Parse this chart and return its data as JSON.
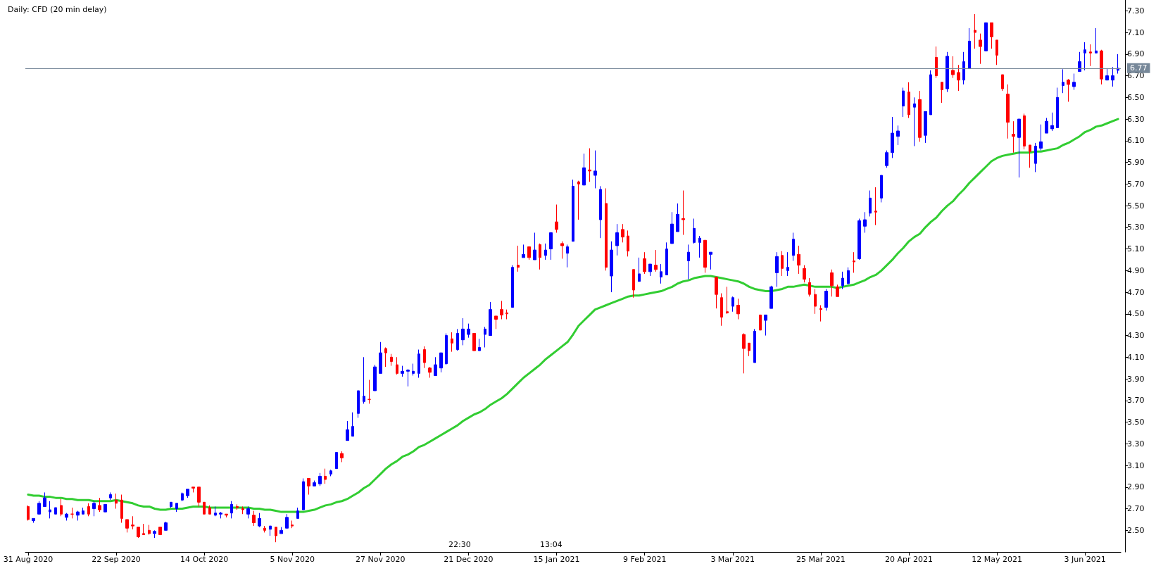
{
  "chart_data": {
    "type": "candlestick",
    "title": "Daily: CFD (20 min delay)",
    "categories": [
      "31 Aug 2020",
      null,
      null,
      null,
      null,
      null,
      null,
      null,
      null,
      null,
      null,
      null,
      null,
      null,
      null,
      null,
      "22 Sep 2020",
      null,
      null,
      null,
      null,
      null,
      null,
      null,
      null,
      null,
      null,
      null,
      null,
      null,
      null,
      null,
      "14 Oct 2020",
      null,
      null,
      null,
      null,
      null,
      null,
      null,
      null,
      null,
      null,
      null,
      null,
      null,
      null,
      null,
      "5 Nov 2020",
      null,
      null,
      null,
      null,
      null,
      null,
      null,
      null,
      null,
      null,
      null,
      null,
      null,
      null,
      null,
      "27 Nov 2020",
      null,
      null,
      null,
      null,
      null,
      null,
      null,
      null,
      null,
      null,
      null,
      null,
      null,
      null,
      null,
      "21 Dec 2020",
      null,
      null,
      null,
      null,
      null,
      null,
      null,
      null,
      null,
      null,
      null,
      null,
      null,
      null,
      null,
      "15 Jan 2021",
      null,
      null,
      null,
      null,
      null,
      null,
      null,
      null,
      null,
      null,
      null,
      null,
      null,
      null,
      null,
      "9 Feb 2021",
      null,
      null,
      null,
      null,
      null,
      null,
      null,
      null,
      null,
      null,
      null,
      null,
      null,
      null,
      null,
      "3 Mar 2021",
      null,
      null,
      null,
      null,
      null,
      null,
      null,
      null,
      null,
      null,
      null,
      null,
      null,
      null,
      null,
      "25 Mar 2021",
      null,
      null,
      null,
      null,
      null,
      null,
      null,
      null,
      null,
      null,
      null,
      null,
      null,
      null,
      null,
      "20 Apr 2021",
      null,
      null,
      null,
      null,
      null,
      null,
      null,
      null,
      null,
      null,
      null,
      null,
      null,
      null,
      null,
      "12 May 2021",
      null,
      null,
      null,
      null,
      null,
      null,
      null,
      null,
      null,
      null,
      null,
      null,
      null,
      null,
      null,
      "3 Jun 2021",
      null,
      null,
      null,
      null,
      null,
      null
    ],
    "series": [
      {
        "ohlc": [
          [
            2.72,
            2.73,
            2.59,
            2.6
          ],
          [
            2.59,
            2.61,
            2.57,
            2.61
          ],
          [
            2.65,
            2.77,
            2.65,
            2.75
          ],
          [
            2.72,
            2.85,
            2.72,
            2.8
          ],
          [
            2.67,
            2.77,
            2.61,
            2.69
          ],
          [
            2.65,
            2.71,
            2.65,
            2.71
          ],
          [
            2.73,
            2.79,
            2.63,
            2.65
          ],
          [
            2.62,
            2.66,
            2.59,
            2.65
          ],
          [
            2.65,
            2.71,
            2.61,
            2.65
          ],
          [
            2.64,
            2.68,
            2.59,
            2.67
          ],
          [
            2.65,
            2.71,
            2.65,
            2.68
          ],
          [
            2.72,
            2.75,
            2.63,
            2.65
          ],
          [
            2.7,
            2.77,
            2.63,
            2.75
          ],
          [
            2.73,
            2.8,
            2.67,
            2.69
          ],
          [
            2.67,
            2.74,
            2.67,
            2.74
          ],
          [
            2.8,
            2.85,
            2.78,
            2.83
          ],
          [
            2.78,
            2.84,
            2.7,
            2.75
          ],
          [
            2.78,
            2.83,
            2.57,
            2.61
          ],
          [
            2.6,
            2.6,
            2.48,
            2.52
          ],
          [
            2.55,
            2.63,
            2.51,
            2.54
          ],
          [
            2.53,
            2.53,
            2.43,
            2.44
          ],
          [
            2.47,
            2.56,
            2.46,
            2.46
          ],
          [
            2.5,
            2.55,
            2.46,
            2.47
          ],
          [
            2.47,
            2.5,
            2.43,
            2.49
          ],
          [
            2.53,
            2.53,
            2.46,
            2.46
          ],
          [
            2.5,
            2.58,
            2.5,
            2.57
          ],
          [
            2.72,
            2.76,
            2.71,
            2.76
          ],
          [
            2.7,
            2.75,
            2.67,
            2.75
          ],
          [
            2.78,
            2.85,
            2.77,
            2.84
          ],
          [
            2.82,
            2.88,
            2.8,
            2.88
          ],
          [
            2.9,
            2.9,
            2.85,
            2.89
          ],
          [
            2.9,
            2.9,
            2.72,
            2.76
          ],
          [
            2.76,
            2.76,
            2.65,
            2.65
          ],
          [
            2.71,
            2.73,
            2.65,
            2.65
          ],
          [
            2.64,
            2.72,
            2.63,
            2.66
          ],
          [
            2.65,
            2.67,
            2.61,
            2.66
          ],
          [
            2.65,
            2.65,
            2.62,
            2.64
          ],
          [
            2.66,
            2.77,
            2.61,
            2.74
          ],
          [
            2.72,
            2.74,
            2.69,
            2.71
          ],
          [
            2.7,
            2.72,
            2.65,
            2.69
          ],
          [
            2.65,
            2.72,
            2.61,
            2.7
          ],
          [
            2.64,
            2.68,
            2.54,
            2.57
          ],
          [
            2.54,
            2.66,
            2.53,
            2.61
          ],
          [
            2.52,
            2.54,
            2.48,
            2.5
          ],
          [
            2.51,
            2.54,
            2.45,
            2.54
          ],
          [
            2.53,
            2.53,
            2.39,
            2.45
          ],
          [
            2.47,
            2.53,
            2.47,
            2.5
          ],
          [
            2.52,
            2.65,
            2.52,
            2.62
          ],
          [
            2.55,
            2.59,
            2.52,
            2.54
          ],
          [
            2.61,
            2.71,
            2.61,
            2.68
          ],
          [
            2.69,
            2.98,
            2.69,
            2.95
          ],
          [
            2.98,
            2.98,
            2.83,
            2.91
          ],
          [
            2.91,
            2.96,
            2.91,
            2.94
          ],
          [
            2.93,
            3.03,
            2.91,
            3.0
          ],
          [
            3.0,
            3.07,
            2.93,
            2.97
          ],
          [
            3.02,
            3.06,
            3.0,
            3.05
          ],
          [
            3.07,
            3.22,
            3.07,
            3.22
          ],
          [
            3.21,
            3.23,
            3.13,
            3.17
          ],
          [
            3.33,
            3.51,
            3.33,
            3.43
          ],
          [
            3.37,
            3.59,
            3.37,
            3.46
          ],
          [
            3.58,
            3.79,
            3.54,
            3.79
          ],
          [
            3.69,
            4.1,
            3.67,
            3.74
          ],
          [
            3.71,
            3.89,
            3.67,
            3.71
          ],
          [
            3.79,
            4.03,
            3.79,
            4.01
          ],
          [
            3.95,
            4.24,
            3.95,
            4.14
          ],
          [
            4.18,
            4.19,
            4.01,
            4.14
          ],
          [
            4.1,
            4.13,
            4.02,
            4.06
          ],
          [
            4.03,
            4.1,
            3.94,
            3.95
          ],
          [
            3.95,
            4.02,
            3.92,
            3.97
          ],
          [
            3.97,
            3.99,
            3.83,
            3.98
          ],
          [
            3.95,
            4.04,
            3.93,
            3.97
          ],
          [
            3.95,
            4.17,
            3.91,
            4.13
          ],
          [
            4.17,
            4.2,
            4.0,
            4.05
          ],
          [
            4.0,
            4.01,
            3.91,
            3.96
          ],
          [
            3.93,
            4.1,
            3.93,
            4.03
          ],
          [
            4.0,
            4.14,
            3.96,
            4.14
          ],
          [
            4.04,
            4.32,
            4.03,
            4.3
          ],
          [
            4.27,
            4.33,
            4.15,
            4.23
          ],
          [
            4.17,
            4.36,
            4.16,
            4.32
          ],
          [
            4.26,
            4.46,
            4.21,
            4.36
          ],
          [
            4.31,
            4.41,
            4.28,
            4.36
          ],
          [
            4.32,
            4.32,
            4.16,
            4.16
          ],
          [
            4.16,
            4.27,
            4.16,
            4.19
          ],
          [
            4.31,
            4.38,
            4.19,
            4.36
          ],
          [
            4.3,
            4.61,
            4.3,
            4.54
          ],
          [
            4.48,
            4.48,
            4.36,
            4.45
          ],
          [
            4.54,
            4.62,
            4.45,
            4.49
          ],
          [
            4.51,
            4.54,
            4.45,
            4.5
          ],
          [
            4.56,
            4.95,
            4.56,
            4.93
          ],
          [
            4.95,
            5.13,
            4.89,
            4.93
          ],
          [
            5.02,
            5.14,
            5.02,
            5.05
          ],
          [
            5.12,
            5.12,
            5.0,
            5.02
          ],
          [
            5.0,
            5.25,
            5.0,
            5.09
          ],
          [
            5.14,
            5.15,
            4.91,
            5.02
          ],
          [
            5.04,
            5.15,
            5.0,
            5.09
          ],
          [
            5.1,
            5.25,
            5.0,
            5.25
          ],
          [
            5.35,
            5.51,
            5.25,
            5.28
          ],
          [
            5.15,
            5.17,
            5.01,
            5.13
          ],
          [
            5.06,
            5.14,
            4.93,
            5.12
          ],
          [
            5.17,
            5.74,
            5.17,
            5.68
          ],
          [
            5.72,
            5.73,
            5.37,
            5.7
          ],
          [
            5.69,
            5.98,
            5.69,
            5.85
          ],
          [
            5.83,
            6.03,
            5.72,
            5.82
          ],
          [
            5.78,
            6.01,
            5.66,
            5.82
          ],
          [
            5.37,
            5.68,
            5.2,
            5.65
          ],
          [
            5.52,
            5.66,
            4.9,
            4.93
          ],
          [
            4.85,
            5.17,
            4.7,
            5.09
          ],
          [
            5.13,
            5.33,
            5.04,
            5.25
          ],
          [
            5.28,
            5.33,
            5.16,
            5.21
          ],
          [
            5.22,
            5.27,
            5.03,
            5.08
          ],
          [
            4.91,
            4.91,
            4.65,
            4.72
          ],
          [
            4.8,
            5.02,
            4.8,
            4.87
          ],
          [
            5.01,
            5.07,
            4.87,
            4.89
          ],
          [
            4.89,
            4.96,
            4.85,
            4.96
          ],
          [
            4.95,
            5.09,
            4.89,
            4.91
          ],
          [
            4.84,
            4.96,
            4.78,
            4.89
          ],
          [
            4.86,
            5.16,
            4.86,
            5.1
          ],
          [
            5.15,
            5.44,
            5.15,
            5.33
          ],
          [
            5.26,
            5.52,
            5.26,
            5.42
          ],
          [
            5.38,
            5.64,
            5.23,
            5.37
          ],
          [
            4.99,
            5.14,
            4.82,
            5.07
          ],
          [
            5.16,
            5.38,
            5.15,
            5.29
          ],
          [
            5.16,
            5.22,
            5.02,
            5.2
          ],
          [
            5.18,
            5.18,
            4.88,
            4.93
          ],
          [
            5.05,
            5.07,
            4.91,
            5.07
          ],
          [
            4.84,
            4.84,
            4.55,
            4.68
          ],
          [
            4.65,
            4.69,
            4.39,
            4.47
          ],
          [
            4.52,
            4.75,
            4.5,
            4.51
          ],
          [
            4.57,
            4.66,
            4.52,
            4.65
          ],
          [
            4.58,
            4.64,
            4.45,
            4.5
          ],
          [
            4.31,
            4.32,
            3.95,
            4.18
          ],
          [
            4.23,
            4.23,
            4.11,
            4.16
          ],
          [
            4.05,
            4.36,
            4.05,
            4.34
          ],
          [
            4.49,
            4.49,
            4.35,
            4.35
          ],
          [
            4.44,
            4.49,
            4.3,
            4.49
          ],
          [
            4.55,
            4.76,
            4.55,
            4.75
          ],
          [
            4.88,
            5.07,
            4.75,
            5.03
          ],
          [
            5.04,
            5.08,
            4.85,
            4.92
          ],
          [
            4.9,
            5.07,
            4.85,
            4.93
          ],
          [
            5.04,
            5.25,
            4.99,
            5.19
          ],
          [
            5.05,
            5.13,
            4.87,
            4.95
          ],
          [
            4.92,
            4.95,
            4.79,
            4.82
          ],
          [
            4.79,
            4.83,
            4.66,
            4.68
          ],
          [
            4.68,
            4.73,
            4.5,
            4.57
          ],
          [
            4.55,
            4.58,
            4.43,
            4.54
          ],
          [
            4.56,
            4.73,
            4.53,
            4.71
          ],
          [
            4.88,
            4.91,
            4.66,
            4.76
          ],
          [
            4.75,
            4.77,
            4.66,
            4.66
          ],
          [
            4.76,
            4.89,
            4.73,
            4.83
          ],
          [
            4.78,
            4.93,
            4.77,
            4.9
          ],
          [
            4.99,
            5.07,
            4.88,
            4.98
          ],
          [
            5.01,
            5.38,
            5.0,
            5.36
          ],
          [
            5.31,
            5.44,
            5.25,
            5.37
          ],
          [
            5.43,
            5.64,
            5.4,
            5.57
          ],
          [
            5.45,
            5.67,
            5.32,
            5.44
          ],
          [
            5.57,
            5.78,
            5.53,
            5.78
          ],
          [
            5.87,
            6.01,
            5.85,
            5.99
          ],
          [
            5.99,
            6.32,
            5.94,
            6.17
          ],
          [
            6.14,
            6.24,
            6.06,
            6.19
          ],
          [
            6.42,
            6.59,
            6.32,
            6.56
          ],
          [
            6.55,
            6.64,
            6.31,
            6.34
          ],
          [
            6.41,
            6.5,
            6.05,
            6.44
          ],
          [
            6.48,
            6.56,
            6.09,
            6.13
          ],
          [
            6.15,
            6.37,
            6.08,
            6.37
          ],
          [
            6.34,
            6.75,
            6.34,
            6.71
          ],
          [
            6.87,
            6.97,
            6.68,
            6.7
          ],
          [
            6.64,
            6.64,
            6.45,
            6.57
          ],
          [
            6.58,
            6.92,
            6.55,
            6.88
          ],
          [
            6.75,
            6.88,
            6.68,
            6.71
          ],
          [
            6.73,
            6.8,
            6.56,
            6.66
          ],
          [
            6.66,
            6.92,
            6.62,
            6.83
          ],
          [
            6.77,
            7.14,
            6.77,
            7.02
          ],
          [
            7.12,
            7.27,
            6.95,
            7.1
          ],
          [
            7.03,
            7.09,
            6.81,
            6.97
          ],
          [
            6.93,
            7.19,
            6.93,
            7.19
          ],
          [
            7.19,
            7.19,
            6.95,
            7.06
          ],
          [
            7.03,
            7.03,
            6.8,
            6.89
          ],
          [
            6.71,
            6.71,
            6.56,
            6.58
          ],
          [
            6.53,
            6.62,
            6.12,
            6.27
          ],
          [
            6.16,
            6.28,
            5.99,
            6.14
          ],
          [
            6.13,
            6.3,
            5.76,
            6.3
          ],
          [
            6.33,
            6.35,
            6.02,
            6.05
          ],
          [
            6.06,
            6.06,
            5.85,
            6.0
          ],
          [
            5.89,
            6.08,
            5.81,
            6.05
          ],
          [
            6.03,
            6.25,
            6.01,
            6.09
          ],
          [
            6.17,
            6.31,
            6.17,
            6.28
          ],
          [
            6.21,
            6.36,
            6.19,
            6.24
          ],
          [
            6.22,
            6.59,
            6.22,
            6.5
          ],
          [
            6.61,
            6.76,
            6.54,
            6.64
          ],
          [
            6.66,
            6.67,
            6.46,
            6.62
          ],
          [
            6.6,
            6.72,
            6.57,
            6.64
          ],
          [
            6.74,
            6.92,
            6.74,
            6.83
          ],
          [
            6.91,
            7.01,
            6.75,
            6.94
          ],
          [
            6.92,
            6.99,
            6.79,
            6.91
          ],
          [
            6.91,
            7.14,
            6.91,
            6.93
          ],
          [
            6.93,
            6.94,
            6.62,
            6.67
          ],
          [
            6.66,
            6.77,
            6.66,
            6.7
          ],
          [
            6.66,
            6.78,
            6.6,
            6.7
          ],
          [
            6.75,
            6.9,
            6.72,
            6.77
          ]
        ],
        "colors": [
          "#ff0000",
          "#0000ff",
          "#0000ff",
          "#0000ff",
          "#0000ff",
          "#0000ff",
          "#ff0000",
          "#0000ff",
          "#ff0000",
          "#0000ff",
          "#0000ff",
          "#ff0000",
          "#0000ff",
          "#ff0000",
          "#0000ff",
          "#0000ff",
          "#ff0000",
          "#ff0000",
          "#ff0000",
          "#ff0000",
          "#ff0000",
          "#ff0000",
          "#ff0000",
          "#0000ff",
          "#ff0000",
          "#0000ff",
          "#0000ff",
          "#0000ff",
          "#0000ff",
          "#0000ff",
          "#ff0000",
          "#ff0000",
          "#ff0000",
          "#ff0000",
          "#0000ff",
          "#0000ff",
          "#ff0000",
          "#0000ff",
          "#ff0000",
          "#ff0000",
          "#0000ff",
          "#ff0000",
          "#0000ff",
          "#ff0000",
          "#0000ff",
          "#ff0000",
          "#0000ff",
          "#0000ff",
          "#ff0000",
          "#0000ff",
          "#0000ff",
          "#ff0000",
          "#0000ff",
          "#0000ff",
          "#ff0000",
          "#0000ff",
          "#0000ff",
          "#ff0000",
          "#0000ff",
          "#0000ff",
          "#0000ff",
          "#0000ff",
          "#ff0000",
          "#0000ff",
          "#0000ff",
          "#ff0000",
          "#ff0000",
          "#ff0000",
          "#0000ff",
          "#0000ff",
          "#0000ff",
          "#0000ff",
          "#ff0000",
          "#ff0000",
          "#0000ff",
          "#0000ff",
          "#0000ff",
          "#ff0000",
          "#0000ff",
          "#0000ff",
          "#0000ff",
          "#ff0000",
          "#0000ff",
          "#0000ff",
          "#0000ff",
          "#ff0000",
          "#ff0000",
          "#ff0000",
          "#0000ff",
          "#ff0000",
          "#0000ff",
          "#ff0000",
          "#0000ff",
          "#ff0000",
          "#0000ff",
          "#0000ff",
          "#ff0000",
          "#ff0000",
          "#0000ff",
          "#0000ff",
          "#ff0000",
          "#0000ff",
          "#ff0000",
          "#0000ff",
          "#0000ff",
          "#ff0000",
          "#0000ff",
          "#0000ff",
          "#ff0000",
          "#ff0000",
          "#ff0000",
          "#0000ff",
          "#ff0000",
          "#0000ff",
          "#ff0000",
          "#0000ff",
          "#0000ff",
          "#0000ff",
          "#0000ff",
          "#ff0000",
          "#0000ff",
          "#0000ff",
          "#0000ff",
          "#ff0000",
          "#0000ff",
          "#ff0000",
          "#ff0000",
          "#ff0000",
          "#0000ff",
          "#ff0000",
          "#ff0000",
          "#ff0000",
          "#0000ff",
          "#ff0000",
          "#0000ff",
          "#0000ff",
          "#0000ff",
          "#ff0000",
          "#0000ff",
          "#0000ff",
          "#ff0000",
          "#ff0000",
          "#ff0000",
          "#ff0000",
          "#ff0000",
          "#0000ff",
          "#ff0000",
          "#ff0000",
          "#0000ff",
          "#0000ff",
          "#ff0000",
          "#0000ff",
          "#0000ff",
          "#0000ff",
          "#ff0000",
          "#0000ff",
          "#0000ff",
          "#0000ff",
          "#0000ff",
          "#0000ff",
          "#ff0000",
          "#0000ff",
          "#ff0000",
          "#0000ff",
          "#0000ff",
          "#ff0000",
          "#ff0000",
          "#0000ff",
          "#ff0000",
          "#ff0000",
          "#0000ff",
          "#0000ff",
          "#ff0000",
          "#ff0000",
          "#0000ff",
          "#ff0000",
          "#ff0000",
          "#ff0000",
          "#ff0000",
          "#ff0000",
          "#0000ff",
          "#ff0000",
          "#ff0000",
          "#0000ff",
          "#0000ff",
          "#0000ff",
          "#0000ff",
          "#0000ff",
          "#0000ff",
          "#ff0000",
          "#0000ff",
          "#0000ff",
          "#0000ff",
          "#ff0000",
          "#0000ff",
          "#ff0000",
          "#0000ff",
          "#0000ff",
          "#0000ff"
        ]
      },
      {
        "type": "line",
        "color": "#32cd32",
        "values": [
          2.83,
          2.82,
          2.82,
          2.81,
          2.81,
          2.8,
          2.8,
          2.79,
          2.79,
          2.78,
          2.78,
          2.78,
          2.77,
          2.77,
          2.77,
          2.77,
          2.78,
          2.77,
          2.76,
          2.75,
          2.73,
          2.72,
          2.72,
          2.7,
          2.69,
          2.69,
          2.7,
          2.7,
          2.7,
          2.71,
          2.72,
          2.72,
          2.72,
          2.71,
          2.71,
          2.71,
          2.71,
          2.71,
          2.71,
          2.71,
          2.71,
          2.7,
          2.7,
          2.69,
          2.69,
          2.68,
          2.67,
          2.67,
          2.67,
          2.67,
          2.67,
          2.68,
          2.69,
          2.71,
          2.73,
          2.74,
          2.76,
          2.77,
          2.79,
          2.82,
          2.85,
          2.89,
          2.92,
          2.97,
          3.02,
          3.07,
          3.11,
          3.14,
          3.18,
          3.2,
          3.23,
          3.27,
          3.29,
          3.32,
          3.35,
          3.38,
          3.41,
          3.44,
          3.47,
          3.51,
          3.54,
          3.57,
          3.59,
          3.62,
          3.66,
          3.69,
          3.72,
          3.76,
          3.81,
          3.86,
          3.91,
          3.95,
          3.99,
          4.03,
          4.08,
          4.12,
          4.16,
          4.2,
          4.24,
          4.31,
          4.39,
          4.44,
          4.49,
          4.54,
          4.56,
          4.58,
          4.6,
          4.62,
          4.64,
          4.66,
          4.67,
          4.67,
          4.68,
          4.69,
          4.7,
          4.71,
          4.73,
          4.75,
          4.78,
          4.8,
          4.81,
          4.83,
          4.84,
          4.85,
          4.85,
          4.84,
          4.83,
          4.82,
          4.81,
          4.8,
          4.78,
          4.75,
          4.73,
          4.72,
          4.71,
          4.71,
          4.72,
          4.73,
          4.75,
          4.75,
          4.76,
          4.77,
          4.76,
          4.75,
          4.75,
          4.75,
          4.75,
          4.74,
          4.75,
          4.76,
          4.77,
          4.79,
          4.81,
          4.84,
          4.86,
          4.9,
          4.95,
          5.0,
          5.06,
          5.11,
          5.17,
          5.21,
          5.24,
          5.3,
          5.35,
          5.39,
          5.45,
          5.5,
          5.54,
          5.6,
          5.65,
          5.71,
          5.76,
          5.81,
          5.86,
          5.91,
          5.94,
          5.96,
          5.97,
          5.98,
          5.99,
          5.99,
          5.99,
          6.0,
          6.0,
          6.01,
          6.02,
          6.03,
          6.06,
          6.08,
          6.11,
          6.14,
          6.18,
          6.2,
          6.23,
          6.24,
          6.26,
          6.28,
          6.3
        ]
      }
    ],
    "ylim": [
      2.3,
      7.4
    ],
    "yticks": [
      {
        "value": 2.5,
        "label": "2.50"
      },
      {
        "value": 2.7,
        "label": "2.70"
      },
      {
        "value": 2.9,
        "label": "2.90"
      },
      {
        "value": 3.1,
        "label": "3.10"
      },
      {
        "value": 3.3,
        "label": "3.30"
      },
      {
        "value": 3.5,
        "label": "3.50"
      },
      {
        "value": 3.7,
        "label": "3.70"
      },
      {
        "value": 3.9,
        "label": "3.90"
      },
      {
        "value": 4.1,
        "label": "4.10"
      },
      {
        "value": 4.3,
        "label": "4.30"
      },
      {
        "value": 4.5,
        "label": "4.50"
      },
      {
        "value": 4.7,
        "label": "4.70"
      },
      {
        "value": 4.9,
        "label": "4.90"
      },
      {
        "value": 5.1,
        "label": "5.10"
      },
      {
        "value": 5.3,
        "label": "5.30"
      },
      {
        "value": 5.5,
        "label": "5.50"
      },
      {
        "value": 5.7,
        "label": "5.70"
      },
      {
        "value": 5.9,
        "label": "5.90"
      },
      {
        "value": 6.1,
        "label": "6.10"
      },
      {
        "value": 6.3,
        "label": "6.30"
      },
      {
        "value": 6.5,
        "label": "6.50"
      },
      {
        "value": 6.7,
        "label": "6.70"
      },
      {
        "value": 6.9,
        "label": "6.90"
      },
      {
        "value": 7.1,
        "label": "7.10"
      },
      {
        "value": 7.3,
        "label": "7.30"
      }
    ],
    "ref_lines": [
      {
        "axis": "y",
        "value": 6.77,
        "label": "6.77",
        "color": "#778899"
      }
    ],
    "annotations": [
      "22:30",
      "13:04"
    ]
  }
}
